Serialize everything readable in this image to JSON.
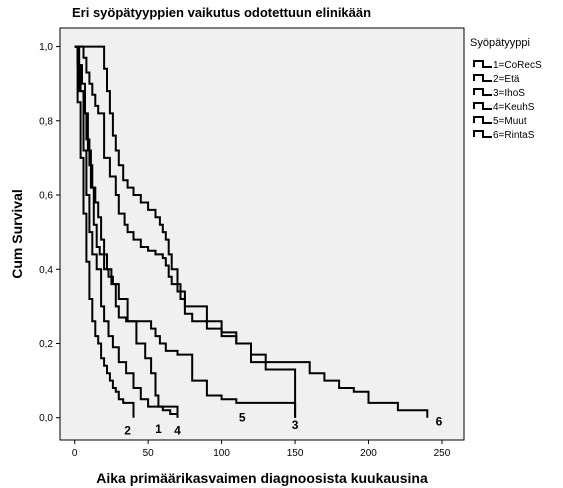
{
  "chart_data": {
    "type": "line",
    "title": "Eri syöpätyyppien vaikutus odotettuun elinikään",
    "xlabel": "Aika primäärikasvaimen diagnoosista kuukausina",
    "ylabel": "Cum Survival",
    "xlim": [
      -10,
      265
    ],
    "ylim": [
      -0.06,
      1.05
    ],
    "xticks": [
      0,
      50,
      100,
      150,
      200,
      250
    ],
    "xtick_labels": [
      "0",
      "50",
      "100",
      "150",
      "200",
      "250"
    ],
    "yticks": [
      0.0,
      0.2,
      0.4,
      0.6,
      0.8,
      1.0
    ],
    "ytick_labels": [
      "0,0",
      "0,2",
      "0,4",
      "0,6",
      "0,8",
      "1,0"
    ],
    "grid": false,
    "legend_position": "right",
    "legend_title": "Syöpätyyppi",
    "series": [
      {
        "name": "1=CoRecS",
        "end_label": "1",
        "label_pos": [
          57,
          -0.03
        ],
        "points": [
          [
            0,
            1.0
          ],
          [
            3,
            0.95
          ],
          [
            5,
            0.9
          ],
          [
            7,
            0.82
          ],
          [
            9,
            0.72
          ],
          [
            11,
            0.62
          ],
          [
            13,
            0.52
          ],
          [
            15,
            0.46
          ],
          [
            17,
            0.44
          ],
          [
            20,
            0.4
          ],
          [
            23,
            0.38
          ],
          [
            26,
            0.36
          ],
          [
            30,
            0.32
          ],
          [
            36,
            0.26
          ],
          [
            42,
            0.2
          ],
          [
            48,
            0.16
          ],
          [
            52,
            0.12
          ],
          [
            55,
            0.06
          ],
          [
            57,
            0.03
          ],
          [
            60,
            0.03
          ],
          [
            70,
            0.0
          ]
        ]
      },
      {
        "name": "2=Etä",
        "end_label": "2",
        "label_pos": [
          36,
          -0.035
        ],
        "points": [
          [
            0,
            1.0
          ],
          [
            2,
            0.85
          ],
          [
            4,
            0.7
          ],
          [
            6,
            0.55
          ],
          [
            8,
            0.42
          ],
          [
            10,
            0.32
          ],
          [
            12,
            0.26
          ],
          [
            14,
            0.22
          ],
          [
            16,
            0.2
          ],
          [
            18,
            0.16
          ],
          [
            20,
            0.14
          ],
          [
            22,
            0.12
          ],
          [
            24,
            0.1
          ],
          [
            26,
            0.08
          ],
          [
            28,
            0.07
          ],
          [
            30,
            0.05
          ],
          [
            33,
            0.04
          ],
          [
            40,
            0.0
          ]
        ]
      },
      {
        "name": "3=IhoS",
        "end_label": "3",
        "label_pos": [
          150,
          -0.02
        ],
        "points": [
          [
            0,
            1.0
          ],
          [
            6,
            0.97
          ],
          [
            8,
            0.93
          ],
          [
            10,
            0.9
          ],
          [
            12,
            0.87
          ],
          [
            14,
            0.84
          ],
          [
            16,
            0.82
          ],
          [
            20,
            0.7
          ],
          [
            24,
            0.65
          ],
          [
            28,
            0.6
          ],
          [
            30,
            0.55
          ],
          [
            34,
            0.52
          ],
          [
            36,
            0.5
          ],
          [
            40,
            0.48
          ],
          [
            45,
            0.46
          ],
          [
            50,
            0.45
          ],
          [
            55,
            0.44
          ],
          [
            60,
            0.43
          ],
          [
            62,
            0.41
          ],
          [
            64,
            0.38
          ],
          [
            66,
            0.36
          ],
          [
            70,
            0.34
          ],
          [
            75,
            0.3
          ],
          [
            80,
            0.3
          ],
          [
            90,
            0.26
          ],
          [
            100,
            0.23
          ],
          [
            110,
            0.2
          ],
          [
            120,
            0.15
          ],
          [
            130,
            0.13
          ],
          [
            150,
            0.13
          ],
          [
            150,
            0.0
          ]
        ]
      },
      {
        "name": "4=KeuhS",
        "end_label": "4",
        "label_pos": [
          70,
          -0.035
        ],
        "points": [
          [
            0,
            1.0
          ],
          [
            3,
            0.88
          ],
          [
            6,
            0.72
          ],
          [
            8,
            0.6
          ],
          [
            10,
            0.5
          ],
          [
            12,
            0.44
          ],
          [
            15,
            0.4
          ],
          [
            18,
            0.3
          ],
          [
            20,
            0.26
          ],
          [
            23,
            0.22
          ],
          [
            26,
            0.19
          ],
          [
            30,
            0.15
          ],
          [
            35,
            0.12
          ],
          [
            40,
            0.08
          ],
          [
            45,
            0.05
          ],
          [
            50,
            0.03
          ],
          [
            60,
            0.02
          ],
          [
            65,
            0.01
          ],
          [
            70,
            0.0
          ]
        ]
      },
      {
        "name": "5=Muut",
        "end_label": "5",
        "label_pos": [
          114,
          0.0
        ],
        "points": [
          [
            0,
            1.0
          ],
          [
            2,
            0.95
          ],
          [
            4,
            0.88
          ],
          [
            6,
            0.82
          ],
          [
            8,
            0.75
          ],
          [
            10,
            0.68
          ],
          [
            12,
            0.62
          ],
          [
            14,
            0.58
          ],
          [
            16,
            0.54
          ],
          [
            18,
            0.48
          ],
          [
            20,
            0.44
          ],
          [
            22,
            0.4
          ],
          [
            25,
            0.36
          ],
          [
            28,
            0.3
          ],
          [
            30,
            0.27
          ],
          [
            35,
            0.26
          ],
          [
            45,
            0.26
          ],
          [
            52,
            0.24
          ],
          [
            55,
            0.22
          ],
          [
            58,
            0.2
          ],
          [
            62,
            0.18
          ],
          [
            70,
            0.17
          ],
          [
            80,
            0.1
          ],
          [
            90,
            0.06
          ],
          [
            100,
            0.05
          ],
          [
            110,
            0.04
          ],
          [
            150,
            0.04
          ],
          [
            150,
            0.0
          ]
        ]
      },
      {
        "name": "6=RintaS",
        "end_label": "6",
        "label_pos": [
          248,
          -0.01
        ],
        "points": [
          [
            0,
            1.0
          ],
          [
            18,
            1.0
          ],
          [
            20,
            0.94
          ],
          [
            22,
            0.88
          ],
          [
            24,
            0.82
          ],
          [
            26,
            0.76
          ],
          [
            28,
            0.72
          ],
          [
            30,
            0.68
          ],
          [
            33,
            0.64
          ],
          [
            36,
            0.62
          ],
          [
            40,
            0.6
          ],
          [
            45,
            0.58
          ],
          [
            50,
            0.56
          ],
          [
            55,
            0.54
          ],
          [
            58,
            0.52
          ],
          [
            60,
            0.5
          ],
          [
            62,
            0.48
          ],
          [
            64,
            0.44
          ],
          [
            66,
            0.4
          ],
          [
            70,
            0.36
          ],
          [
            72,
            0.32
          ],
          [
            75,
            0.28
          ],
          [
            80,
            0.26
          ],
          [
            90,
            0.24
          ],
          [
            100,
            0.22
          ],
          [
            110,
            0.2
          ],
          [
            120,
            0.17
          ],
          [
            130,
            0.15
          ],
          [
            150,
            0.15
          ],
          [
            160,
            0.12
          ],
          [
            170,
            0.1
          ],
          [
            180,
            0.08
          ],
          [
            190,
            0.07
          ],
          [
            200,
            0.04
          ],
          [
            220,
            0.02
          ],
          [
            240,
            0.02
          ],
          [
            240,
            0.0
          ]
        ]
      }
    ]
  }
}
